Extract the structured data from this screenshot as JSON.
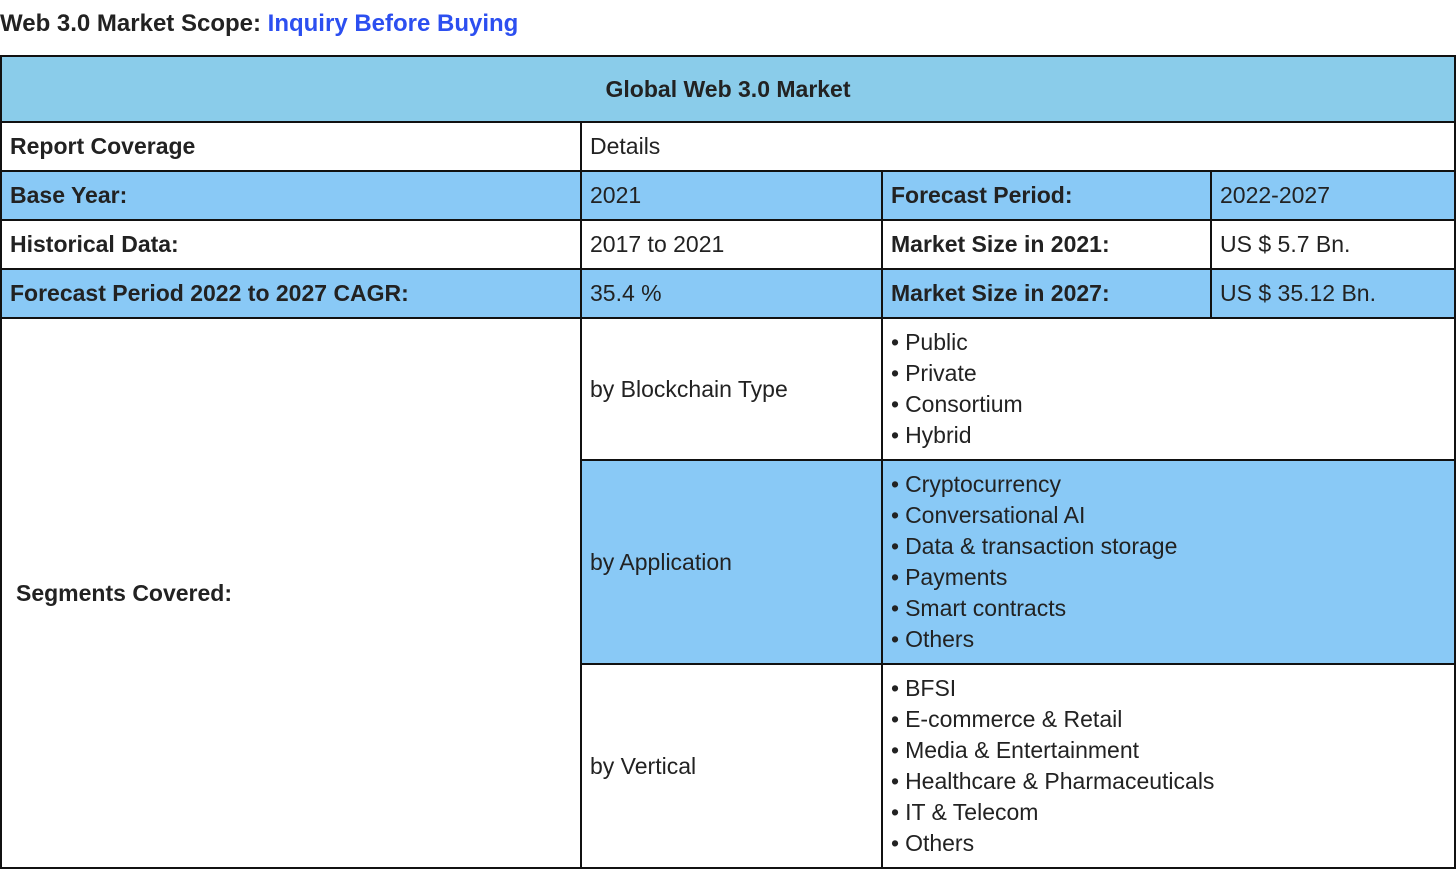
{
  "heading": {
    "prefix": "Web 3.0 Market Scope:",
    "link": "Inquiry Before Buying"
  },
  "table": {
    "title": "Global Web 3.0 Market",
    "report_coverage": {
      "label": "Report Coverage",
      "value": "Details"
    },
    "base_year": {
      "label": "Base Year:",
      "value": "2021"
    },
    "forecast_period": {
      "label": "Forecast Period:",
      "value": "2022-2027"
    },
    "historical_data": {
      "label": "Historical Data:",
      "value": "2017 to 2021"
    },
    "market_size_2021": {
      "label": "Market Size in 2021:",
      "value": "US $ 5.7 Bn."
    },
    "cagr": {
      "label": "Forecast Period 2022 to 2027 CAGR:",
      "value": "35.4 %"
    },
    "market_size_2027": {
      "label": "Market Size in 2027:",
      "value": "US $ 35.12 Bn."
    },
    "segments": {
      "label": "Segments Covered:",
      "groups": [
        {
          "name": "by Blockchain Type",
          "items": [
            "Public",
            "Private",
            "Consortium",
            "Hybrid"
          ]
        },
        {
          "name": "by Application",
          "items": [
            "Cryptocurrency",
            "Conversational AI",
            "Data & transaction storage",
            "Payments",
            "Smart contracts",
            "Others"
          ]
        },
        {
          "name": "by Vertical",
          "items": [
            "BFSI",
            "E-commerce & Retail",
            "Media & Entertainment",
            "Healthcare & Pharmaceuticals",
            "IT & Telecom",
            "Others"
          ]
        }
      ]
    }
  }
}
